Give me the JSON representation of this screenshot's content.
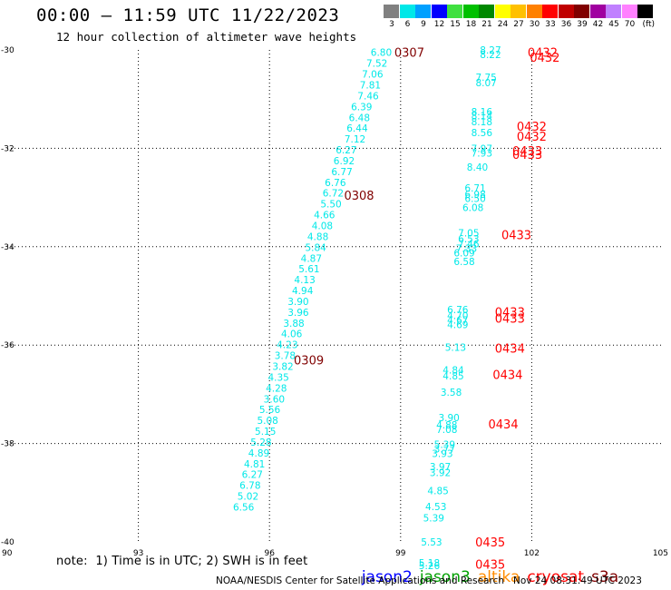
{
  "header": {
    "title": "00:00 — 11:59 UTC 11/22/2023",
    "subtitle": "12 hour collection of altimeter wave heights"
  },
  "color_scale": {
    "units": "(ft)",
    "bins": [
      {
        "label": "3",
        "color": "#808080"
      },
      {
        "label": "6",
        "color": "#00e8e8"
      },
      {
        "label": "9",
        "color": "#00a0ff"
      },
      {
        "label": "12",
        "color": "#0000ff"
      },
      {
        "label": "15",
        "color": "#40e040"
      },
      {
        "label": "18",
        "color": "#00c000"
      },
      {
        "label": "21",
        "color": "#008800"
      },
      {
        "label": "24",
        "color": "#ffff00"
      },
      {
        "label": "27",
        "color": "#ffc000"
      },
      {
        "label": "30",
        "color": "#ff8000"
      },
      {
        "label": "33",
        "color": "#ff0000"
      },
      {
        "label": "36",
        "color": "#c00000"
      },
      {
        "label": "39",
        "color": "#800000"
      },
      {
        "label": "42",
        "color": "#a000a0"
      },
      {
        "label": "45",
        "color": "#c080ff"
      },
      {
        "label": "70",
        "color": "#ff80ff"
      },
      {
        "label": "",
        "color": "#000000"
      }
    ]
  },
  "chart_data": {
    "type": "scatter",
    "xlabel": "",
    "ylabel": "",
    "xlim": [
      90,
      105
    ],
    "ylim": [
      -40,
      -30
    ],
    "xticks": [
      "90",
      "93",
      "96",
      "99",
      "102",
      "105"
    ],
    "yticks": [
      "-30",
      "-32",
      "-34",
      "-36",
      "-38",
      "-40"
    ],
    "grid": true,
    "series": [
      {
        "color": "#00e8e8",
        "points": [
          {
            "x": 98.8,
            "y": -30.05,
            "label": "6.80"
          },
          {
            "x": 98.7,
            "y": -30.27,
            "label": "7.52"
          },
          {
            "x": 98.6,
            "y": -30.49,
            "label": "7.06"
          },
          {
            "x": 98.55,
            "y": -30.71,
            "label": "7.81"
          },
          {
            "x": 98.5,
            "y": -30.93,
            "label": "7.46"
          },
          {
            "x": 98.35,
            "y": -31.15,
            "label": "6.39"
          },
          {
            "x": 98.3,
            "y": -31.37,
            "label": "6.48"
          },
          {
            "x": 98.25,
            "y": -31.59,
            "label": "6.44"
          },
          {
            "x": 98.2,
            "y": -31.81,
            "label": "7.12"
          },
          {
            "x": 98.0,
            "y": -32.03,
            "label": "6.27"
          },
          {
            "x": 97.95,
            "y": -32.25,
            "label": "6.92"
          },
          {
            "x": 97.9,
            "y": -32.47,
            "label": "6.77"
          },
          {
            "x": 97.75,
            "y": -32.69,
            "label": "6.76"
          },
          {
            "x": 97.7,
            "y": -32.91,
            "label": "6.72"
          },
          {
            "x": 97.65,
            "y": -33.13,
            "label": "5.50"
          },
          {
            "x": 97.5,
            "y": -33.35,
            "label": "4.66"
          },
          {
            "x": 97.45,
            "y": -33.57,
            "label": "4.08"
          },
          {
            "x": 97.35,
            "y": -33.79,
            "label": "4.88"
          },
          {
            "x": 97.3,
            "y": -34.01,
            "label": "5.84"
          },
          {
            "x": 97.2,
            "y": -34.23,
            "label": "4.87"
          },
          {
            "x": 97.15,
            "y": -34.45,
            "label": "5.61"
          },
          {
            "x": 97.05,
            "y": -34.67,
            "label": "4.13"
          },
          {
            "x": 97.0,
            "y": -34.89,
            "label": "4.94"
          },
          {
            "x": 96.9,
            "y": -35.11,
            "label": "3.90"
          },
          {
            "x": 96.9,
            "y": -35.33,
            "label": "3.96"
          },
          {
            "x": 96.8,
            "y": -35.55,
            "label": "3.88"
          },
          {
            "x": 96.75,
            "y": -35.77,
            "label": "4.06"
          },
          {
            "x": 96.65,
            "y": -35.99,
            "label": "4.23"
          },
          {
            "x": 96.6,
            "y": -36.21,
            "label": "3.78"
          },
          {
            "x": 96.55,
            "y": -36.43,
            "label": "3.82"
          },
          {
            "x": 96.45,
            "y": -36.65,
            "label": "4.35"
          },
          {
            "x": 96.4,
            "y": -36.87,
            "label": "4.28"
          },
          {
            "x": 96.35,
            "y": -37.09,
            "label": "3.60"
          },
          {
            "x": 96.25,
            "y": -37.31,
            "label": "5.56"
          },
          {
            "x": 96.2,
            "y": -37.53,
            "label": "5.08"
          },
          {
            "x": 96.15,
            "y": -37.75,
            "label": "5.15"
          },
          {
            "x": 96.05,
            "y": -37.97,
            "label": "5.28"
          },
          {
            "x": 96.0,
            "y": -38.19,
            "label": "4.89"
          },
          {
            "x": 95.9,
            "y": -38.41,
            "label": "4.81"
          },
          {
            "x": 95.85,
            "y": -38.63,
            "label": "6.27"
          },
          {
            "x": 95.8,
            "y": -38.85,
            "label": "6.78"
          },
          {
            "x": 95.75,
            "y": -39.07,
            "label": "5.02"
          },
          {
            "x": 95.65,
            "y": -39.29,
            "label": "6.56"
          },
          {
            "x": 101.3,
            "y": -30.0,
            "label": "8.27"
          },
          {
            "x": 101.3,
            "y": -30.09,
            "label": "8.22"
          },
          {
            "x": 101.2,
            "y": -30.55,
            "label": "7.75"
          },
          {
            "x": 101.2,
            "y": -30.66,
            "label": "8.07"
          },
          {
            "x": 101.1,
            "y": -31.25,
            "label": "8.16"
          },
          {
            "x": 101.1,
            "y": -31.34,
            "label": "8.14"
          },
          {
            "x": 101.1,
            "y": -31.46,
            "label": "8.18"
          },
          {
            "x": 101.1,
            "y": -31.68,
            "label": "8.56"
          },
          {
            "x": 101.1,
            "y": -32.0,
            "label": "7.97"
          },
          {
            "x": 101.1,
            "y": -32.09,
            "label": "7.93"
          },
          {
            "x": 101.0,
            "y": -32.38,
            "label": "8.40"
          },
          {
            "x": 100.95,
            "y": -32.8,
            "label": "6.71"
          },
          {
            "x": 100.95,
            "y": -32.93,
            "label": "6.98"
          },
          {
            "x": 100.95,
            "y": -33.02,
            "label": "6.50"
          },
          {
            "x": 100.9,
            "y": -33.2,
            "label": "6.08"
          },
          {
            "x": 100.8,
            "y": -33.72,
            "label": "7.05"
          },
          {
            "x": 100.8,
            "y": -33.84,
            "label": "6.53"
          },
          {
            "x": 100.8,
            "y": -33.94,
            "label": "7.46"
          },
          {
            "x": 100.75,
            "y": -34.03,
            "label": "7.33"
          },
          {
            "x": 100.7,
            "y": -34.12,
            "label": "6.09"
          },
          {
            "x": 100.7,
            "y": -34.3,
            "label": "6.58"
          },
          {
            "x": 100.55,
            "y": -35.28,
            "label": "6.76"
          },
          {
            "x": 100.55,
            "y": -35.4,
            "label": "4.70"
          },
          {
            "x": 100.55,
            "y": -35.49,
            "label": "4.67"
          },
          {
            "x": 100.55,
            "y": -35.58,
            "label": "4.69"
          },
          {
            "x": 100.5,
            "y": -36.04,
            "label": "5.13"
          },
          {
            "x": 100.45,
            "y": -36.5,
            "label": "4.84"
          },
          {
            "x": 100.45,
            "y": -36.62,
            "label": "4.85"
          },
          {
            "x": 100.4,
            "y": -36.96,
            "label": "3.58"
          },
          {
            "x": 100.35,
            "y": -37.47,
            "label": "3.90"
          },
          {
            "x": 100.3,
            "y": -37.62,
            "label": "4.88"
          },
          {
            "x": 100.3,
            "y": -37.71,
            "label": "7.08"
          },
          {
            "x": 100.25,
            "y": -38.02,
            "label": "5.39"
          },
          {
            "x": 100.25,
            "y": -38.11,
            "label": "3.77"
          },
          {
            "x": 100.2,
            "y": -38.2,
            "label": "3.93"
          },
          {
            "x": 100.15,
            "y": -38.47,
            "label": "3.97"
          },
          {
            "x": 100.15,
            "y": -38.59,
            "label": "3.92"
          },
          {
            "x": 100.1,
            "y": -38.96,
            "label": "4.85"
          },
          {
            "x": 100.05,
            "y": -39.28,
            "label": "4.53"
          },
          {
            "x": 100.0,
            "y": -39.51,
            "label": "5.39"
          },
          {
            "x": 99.95,
            "y": -40.0,
            "label": "5.53"
          },
          {
            "x": 99.9,
            "y": -40.42,
            "label": "5.18"
          },
          {
            "x": 99.9,
            "y": -40.48,
            "label": "5.26"
          }
        ]
      }
    ],
    "annotations": [
      {
        "x": 99.2,
        "y": -30.05,
        "text": "0307",
        "color": "#800000"
      },
      {
        "x": 98.05,
        "y": -32.95,
        "text": "0308",
        "color": "#800000"
      },
      {
        "x": 96.9,
        "y": -36.3,
        "text": "0309",
        "color": "#800000"
      },
      {
        "x": 102.25,
        "y": -30.05,
        "text": "0432",
        "color": "#ff0000"
      },
      {
        "x": 102.3,
        "y": -30.15,
        "text": "0432",
        "color": "#ff0000"
      },
      {
        "x": 102.0,
        "y": -31.55,
        "text": "0432",
        "color": "#ff0000"
      },
      {
        "x": 102.0,
        "y": -31.75,
        "text": "0432",
        "color": "#ff0000"
      },
      {
        "x": 101.9,
        "y": -32.05,
        "text": "0433",
        "color": "#ff0000"
      },
      {
        "x": 101.9,
        "y": -32.12,
        "text": "0433",
        "color": "#ff0000"
      },
      {
        "x": 101.65,
        "y": -33.75,
        "text": "0433",
        "color": "#ff0000"
      },
      {
        "x": 101.5,
        "y": -35.32,
        "text": "0433",
        "color": "#ff0000"
      },
      {
        "x": 101.5,
        "y": -35.45,
        "text": "0433",
        "color": "#ff0000"
      },
      {
        "x": 101.5,
        "y": -36.06,
        "text": "0434",
        "color": "#ff0000"
      },
      {
        "x": 101.45,
        "y": -36.6,
        "text": "0434",
        "color": "#ff0000"
      },
      {
        "x": 101.35,
        "y": -37.6,
        "text": "0434",
        "color": "#ff0000"
      },
      {
        "x": 101.05,
        "y": -40.0,
        "text": "0435",
        "color": "#ff0000"
      },
      {
        "x": 101.05,
        "y": -40.45,
        "text": "0435",
        "color": "#ff0000"
      }
    ]
  },
  "note": "note:  1) Time is in UTC; 2) SWH is in feet",
  "satellites": [
    {
      "name": "jason2",
      "color": "#0000ff"
    },
    {
      "name": "jason3",
      "color": "#00a000"
    },
    {
      "name": "altika",
      "color": "#ff8c00"
    },
    {
      "name": "cryosat",
      "color": "#ff0000"
    },
    {
      "name": "s3a",
      "color": "#800000"
    }
  ],
  "footer": {
    "credit": "NOAA/NESDIS Center for Satellite Applications and Research",
    "timestamp": "Nov 24 08:31:49 UTC 2023"
  }
}
